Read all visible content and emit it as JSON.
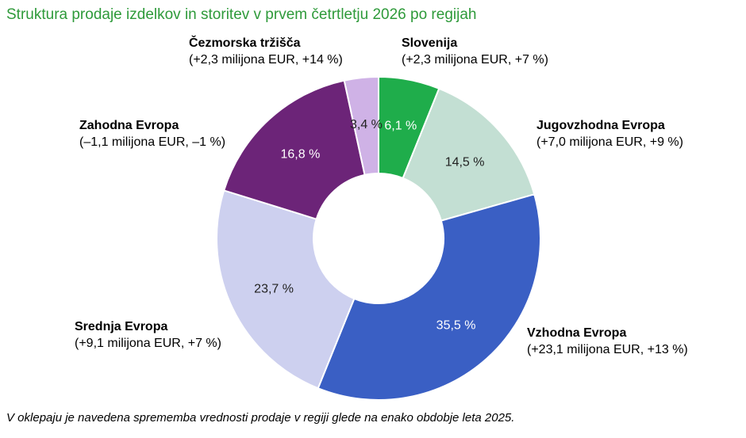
{
  "title": "Struktura prodaje izdelkov in storitev v prvem četrtletju 2026 po regijah",
  "footnote": "V oklepaju je navedena sprememba vrednosti prodaje v regiji glede na enako obdobje leta 2025.",
  "chart_data": {
    "type": "pie",
    "variant": "donut",
    "title": "Struktura prodaje izdelkov in storitev v prvem četrtletju 2026 po regijah",
    "unit": "%",
    "slices": [
      {
        "name": "Slovenija",
        "value": 6.1,
        "label": "6,1 %",
        "change": "(+2,3 milijona EUR, +7 %)",
        "color": "#1fad4b",
        "label_color": "#ffffff"
      },
      {
        "name": "Jugovzhodna Evropa",
        "value": 14.5,
        "label": "14,5 %",
        "change": "(+7,0 milijona EUR, +9 %)",
        "color": "#c3dfd3",
        "label_color": "#222222"
      },
      {
        "name": "Vzhodna Evropa",
        "value": 35.5,
        "label": "35,5 %",
        "change": "(+23,1 milijona EUR, +13 %)",
        "color": "#3a5fc4",
        "label_color": "#ffffff"
      },
      {
        "name": "Srednja Evropa",
        "value": 23.7,
        "label": "23,7 %",
        "change": "(+9,1 milijona EUR, +7 %)",
        "color": "#cdd0ef",
        "label_color": "#222222"
      },
      {
        "name": "Zahodna Evropa",
        "value": 16.8,
        "label": "16,8 %",
        "change": "(–1,1 milijona EUR, –1 %)",
        "color": "#6c2478",
        "label_color": "#ffffff"
      },
      {
        "name": "Čezmorska tržišča",
        "value": 3.4,
        "label": "3,4 %",
        "change": "(+2,3 milijona EUR, +14 %)",
        "color": "#cfb2e6",
        "label_color": "#222222"
      }
    ]
  }
}
